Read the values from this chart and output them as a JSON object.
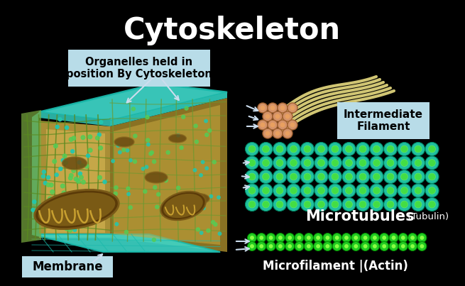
{
  "title": "Cytoskeleton",
  "title_fontsize": 30,
  "title_color": "#FFFFFF",
  "background_color": "#000000",
  "label_box_color": "#b8dce8",
  "label_text_color": "#000000",
  "arrow_color": "#CCDDEE",
  "labels": {
    "organelles": "Organelles held in\nposition By Cytoskeleton",
    "intermediate": "Intermediate\nFilament",
    "microtubules": "Microtubules",
    "tubulin": " (Tubulin)",
    "microfilament": "Microfilament |(Actin)",
    "membrane": "Membrane"
  },
  "cell_teal": "#3DD6C8",
  "cell_teal_dark": "#2AADA0",
  "cell_teal_edge": "#00FFEE",
  "cell_yellow": "#D4A84B",
  "cell_mesh": "#C8B86A",
  "mito_outer": "#5A3A08",
  "mito_inner": "#8B6A20",
  "mito_fold": "#C8A030",
  "mt_teal": "#20C0A0",
  "mt_green": "#44DD44",
  "mt_outer_edge": "#008866",
  "mf_green": "#22CC22",
  "mf_bright": "#88FF44",
  "fil_yellow": "#E8DC80",
  "fil_tan": "#D4936A",
  "fil_tan_edge": "#A06030"
}
